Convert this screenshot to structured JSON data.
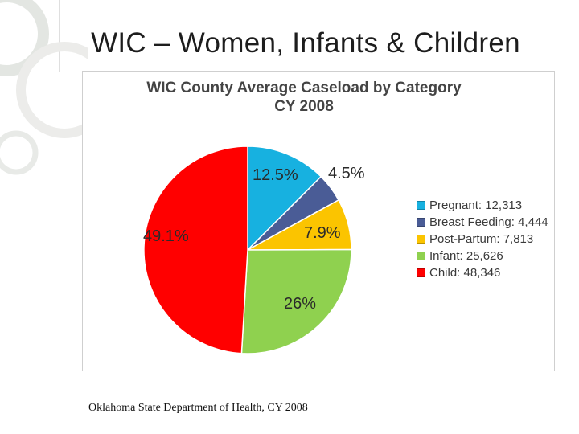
{
  "slide": {
    "title": "WIC – Women, Infants & Children",
    "source": "Oklahoma State Department of Health, CY 2008"
  },
  "colors": {
    "pregnant": "#17b1e0",
    "breast_feeding": "#4a5c96",
    "post_partum": "#fbc400",
    "infant": "#8fd14f",
    "child": "#ff0000"
  },
  "chart_data": {
    "type": "pie",
    "title": "WIC County Average Caseload by Category",
    "subtitle": "CY 2008",
    "slices": [
      {
        "key": "pregnant",
        "name": "Pregnant",
        "value": 12313,
        "label": "12.5%",
        "legend": "Pregnant: 12,313"
      },
      {
        "key": "breast_feeding",
        "name": "Breast Feeding",
        "value": 4444,
        "label": "4.5%",
        "legend": "Breast Feeding: 4,444"
      },
      {
        "key": "post_partum",
        "name": "Post-Partum",
        "value": 7813,
        "label": "7.9%",
        "legend": "Post-Partum: 7,813"
      },
      {
        "key": "infant",
        "name": "Infant",
        "value": 25626,
        "label": "26%",
        "legend": "Infant: 25,626"
      },
      {
        "key": "child",
        "name": "Child",
        "value": 48346,
        "label": "49.1%",
        "legend": "Child: 48,346"
      }
    ],
    "legend_position": "right"
  }
}
